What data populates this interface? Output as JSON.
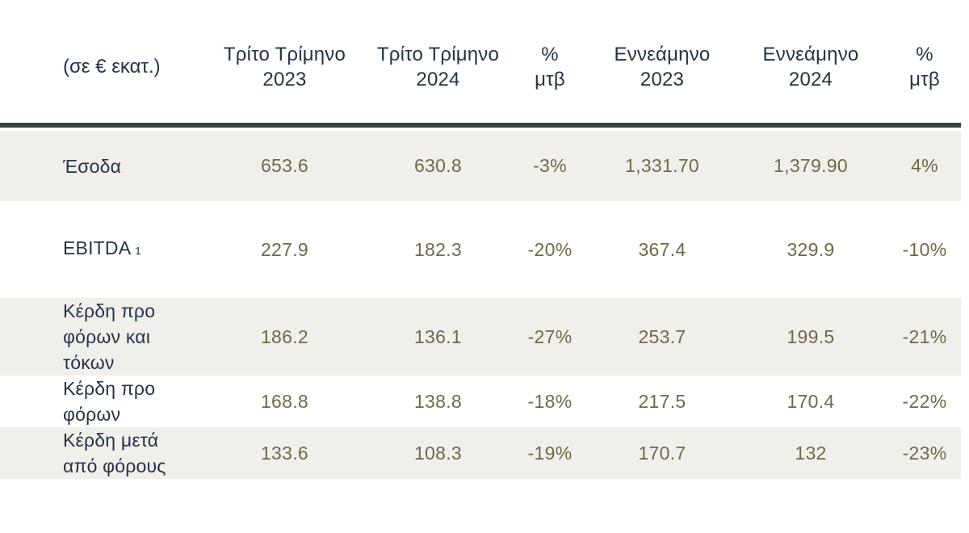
{
  "colors": {
    "header_text": "#263247",
    "value_text": "#6f694a",
    "divider": "#3a433f",
    "stripe_bg": "#f1efeb",
    "page_bg": "#ffffff"
  },
  "header": {
    "unit_label": "(σε € εκατ.)",
    "cols": [
      {
        "line1": "Τρίτο Τρίμηνο",
        "line2": "2023"
      },
      {
        "line1": "Τρίτο Τρίμηνο",
        "line2": "2024"
      },
      {
        "line1": "%",
        "line2": "μτβ"
      },
      {
        "line1": "Εννεάμηνο",
        "line2": "2023"
      },
      {
        "line1": "Εννεάμηνο",
        "line2": "2024"
      },
      {
        "line1": "%",
        "line2": "μτβ"
      }
    ]
  },
  "chart_data": {
    "type": "table",
    "title": "",
    "unit_label": "(σε € εκατ.)",
    "columns": [
      "Τρίτο Τρίμηνο 2023",
      "Τρίτο Τρίμηνο 2024",
      "% μτβ",
      "Εννεάμηνο 2023",
      "Εννεάμηνο 2024",
      "% μτβ"
    ],
    "rows": [
      {
        "label": "Έσοδα",
        "sup": "",
        "values": [
          "653.6",
          "630.8",
          "-3%",
          "1,331.70",
          "1,379.90",
          "4%"
        ]
      },
      {
        "label": "EBITDA",
        "sup": "1",
        "values": [
          "227.9",
          "182.3",
          "-20%",
          "367.4",
          "329.9",
          "-10%"
        ]
      },
      {
        "label": "Κέρδη προ φόρων και τόκων",
        "sup": "",
        "values": [
          "186.2",
          "136.1",
          "-27%",
          "253.7",
          "199.5",
          "-21%"
        ]
      },
      {
        "label": "Κέρδη προ φόρων",
        "sup": "",
        "values": [
          "168.8",
          "138.8",
          "-18%",
          "217.5",
          "170.4",
          "-22%"
        ]
      },
      {
        "label": "Κέρδη μετά από φόρους",
        "sup": "",
        "values": [
          "133.6",
          "108.3",
          "-19%",
          "170.7",
          "132",
          "-23%"
        ]
      }
    ]
  }
}
